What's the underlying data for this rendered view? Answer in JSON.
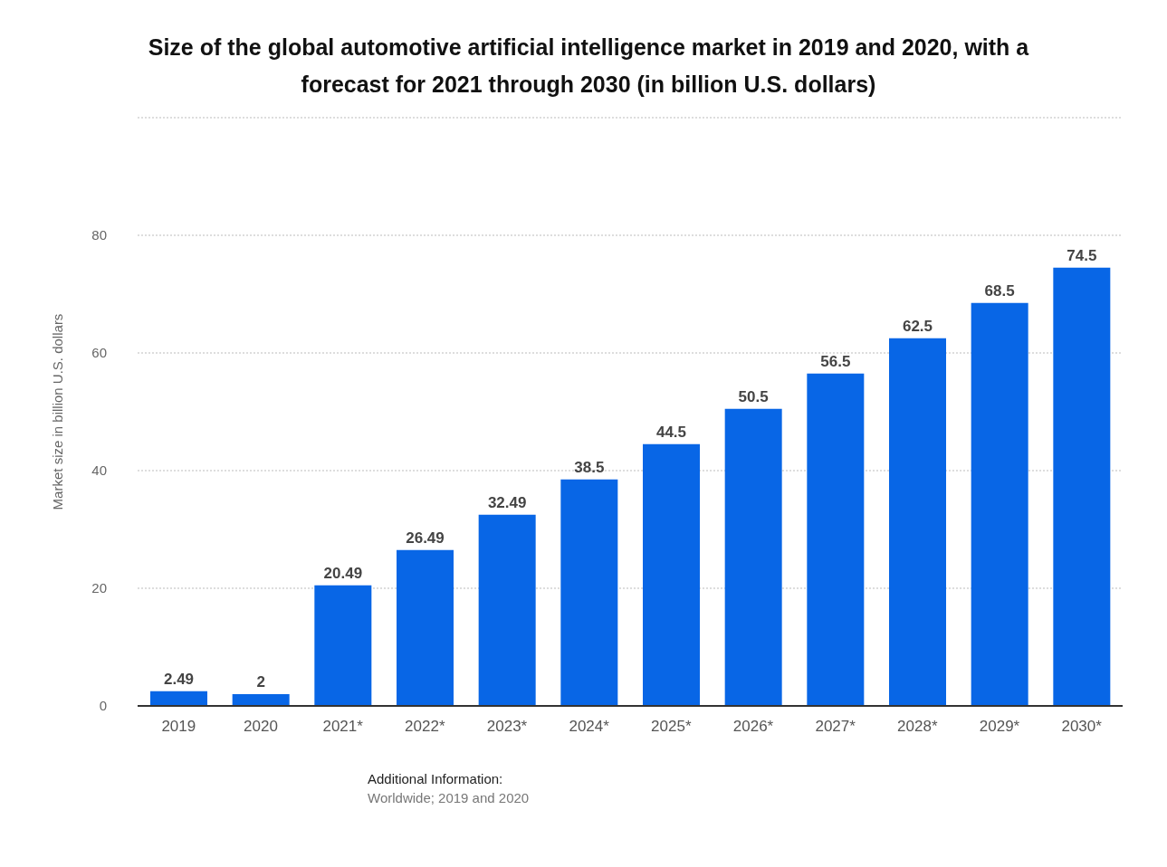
{
  "chart_data": {
    "type": "bar",
    "title": "Size of the global automotive artificial intelligence market in 2019 and 2020, with a forecast for 2021 through 2030 (in billion U.S. dollars)",
    "ylabel": "Market size in billion U.S. dollars",
    "categories": [
      "2019",
      "2020",
      "2021*",
      "2022*",
      "2023*",
      "2024*",
      "2025*",
      "2026*",
      "2027*",
      "2028*",
      "2029*",
      "2030*"
    ],
    "values": [
      2.49,
      2,
      20.49,
      26.49,
      32.49,
      38.5,
      44.5,
      50.5,
      56.5,
      62.5,
      68.5,
      74.5
    ],
    "color": "#0866e6",
    "ylim": [
      0,
      100
    ],
    "yticks": [
      0,
      20,
      40,
      60,
      80,
      {
        "value": 100,
        "label": null
      }
    ],
    "grid": "y",
    "data_labels": true,
    "annotations": [
      "Additional Information:",
      "Worldwide; 2019 and 2020"
    ]
  }
}
